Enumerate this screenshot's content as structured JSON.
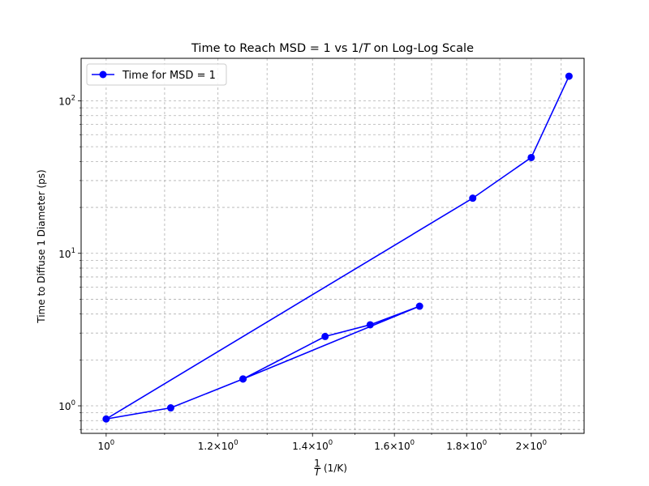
{
  "chart_data": {
    "type": "line",
    "title": "Time to Reach MSD = 1 vs 1/T on Log-Log Scale",
    "xlabel": "1/T (1/K)",
    "ylabel": "Time to Diffuse 1 Diameter (ps)",
    "xscale": "log",
    "yscale": "log",
    "xlim": [
      0.96,
      2.18
    ],
    "ylim": [
      0.66,
      190
    ],
    "grid": true,
    "legend_placement": "top-left",
    "x_ticks": [
      {
        "value": 1.0,
        "mant": "10",
        "exp": "0"
      },
      {
        "value": 1.2,
        "mant": "1.2×10",
        "exp": "0"
      },
      {
        "value": 1.4,
        "mant": "1.4×10",
        "exp": "0"
      },
      {
        "value": 1.6,
        "mant": "1.6×10",
        "exp": "0"
      },
      {
        "value": 1.8,
        "mant": "1.8×10",
        "exp": "0"
      },
      {
        "value": 2.0,
        "mant": "2×10",
        "exp": "0"
      }
    ],
    "y_ticks": [
      {
        "value": 1,
        "mant": "10",
        "exp": "0"
      },
      {
        "value": 10,
        "mant": "10",
        "exp": "1"
      },
      {
        "value": 100,
        "mant": "10",
        "exp": "2"
      }
    ],
    "series": [
      {
        "name": "Time for MSD = 1",
        "color": "#0000ff",
        "marker": "circle",
        "x": [
          2.127,
          2.0,
          1.818,
          1.0,
          1.111,
          1.25,
          1.667,
          1.538,
          1.429,
          1.25
        ],
        "y": [
          145,
          42.5,
          23,
          0.82,
          0.97,
          1.5,
          4.5,
          3.4,
          2.85,
          1.5
        ]
      }
    ]
  }
}
